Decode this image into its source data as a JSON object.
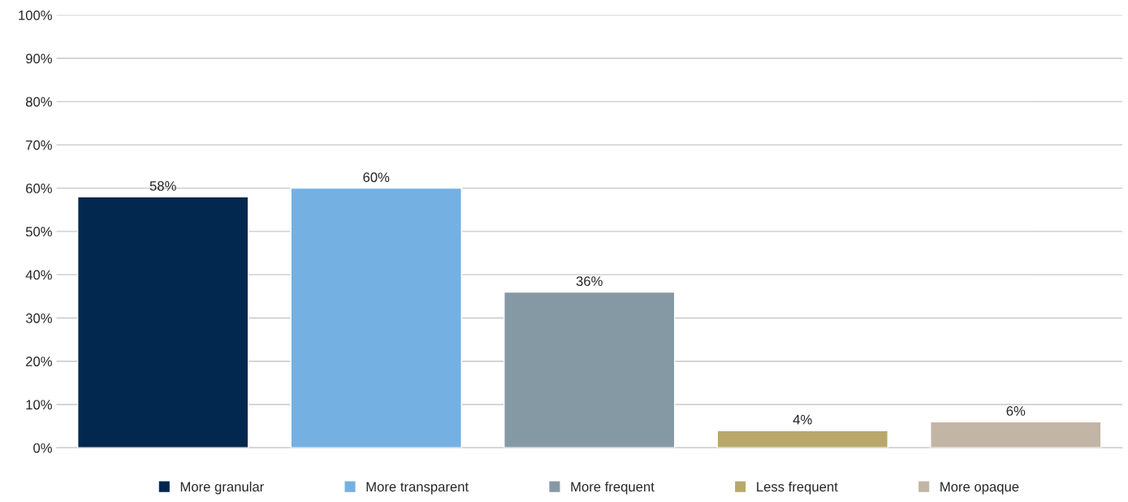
{
  "chart_data": {
    "type": "bar",
    "categories": [
      null,
      null,
      null,
      null,
      null
    ],
    "series": [
      {
        "name": "More granular",
        "color": "#03284f",
        "values": [
          58,
          null,
          null,
          null,
          null
        ],
        "value_labels": [
          "58%",
          null,
          null,
          null,
          null
        ]
      },
      {
        "name": "More transparent",
        "color": "#74b0e2",
        "values": [
          null,
          60,
          null,
          null,
          null
        ],
        "value_labels": [
          null,
          "60%",
          null,
          null,
          null
        ]
      },
      {
        "name": "More frequent",
        "color": "#8599a5",
        "values": [
          null,
          null,
          36,
          null,
          null
        ],
        "value_labels": [
          null,
          null,
          "36%",
          null,
          null
        ]
      },
      {
        "name": "Less frequent",
        "color": "#b8a96b",
        "values": [
          null,
          null,
          null,
          4,
          null
        ],
        "value_labels": [
          null,
          null,
          null,
          "4%",
          null
        ]
      },
      {
        "name": "More opaque",
        "color": "#c2b5a5",
        "values": [
          null,
          null,
          null,
          null,
          6
        ],
        "value_labels": [
          null,
          null,
          null,
          null,
          "6%"
        ]
      }
    ],
    "ylim": [
      0,
      100
    ],
    "yticks": [
      {
        "value": 0,
        "label": "0%"
      },
      {
        "value": 10,
        "label": "10%"
      },
      {
        "value": 20,
        "label": "20%"
      },
      {
        "value": 30,
        "label": "30%"
      },
      {
        "value": 40,
        "label": "40%"
      },
      {
        "value": 50,
        "label": "50%"
      },
      {
        "value": 60,
        "label": "60%"
      },
      {
        "value": 70,
        "label": "70%"
      },
      {
        "value": 80,
        "label": "80%"
      },
      {
        "value": 90,
        "label": "90%"
      },
      {
        "value": 100,
        "label": "100%"
      }
    ],
    "grid": "y",
    "legend": "bottom"
  }
}
